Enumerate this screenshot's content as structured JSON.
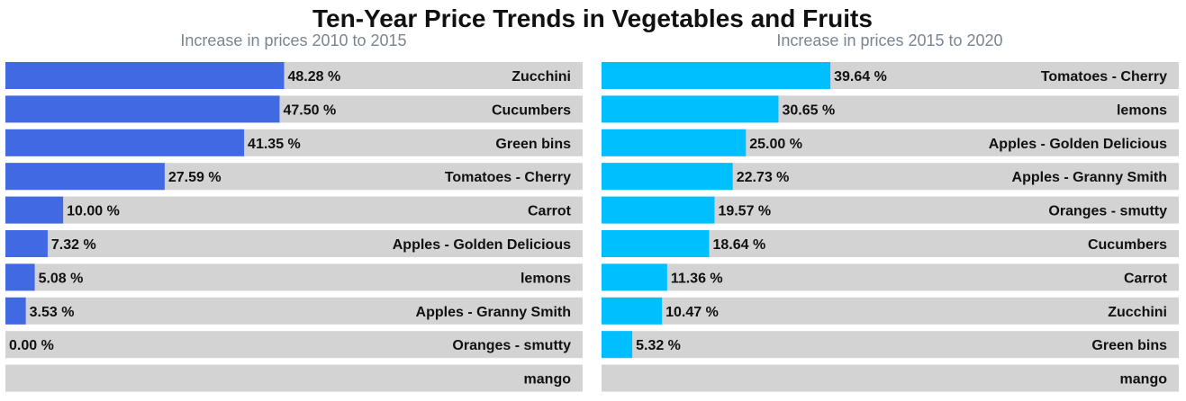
{
  "title": "Ten-Year Price Trends in Vegetables and Fruits",
  "colors": {
    "track": "#d3d3d3",
    "text": "#111111",
    "subtitle": "#7a8591",
    "left_bar": "#4169e1",
    "right_bar": "#00bfff"
  },
  "chart_data": [
    {
      "type": "bar",
      "orientation": "horizontal",
      "subtitle": "Increase in prices 2010 to 2015",
      "xlim": [
        0,
        100
      ],
      "value_suffix": " %",
      "categories": [
        "Zucchini",
        "Cucumbers",
        "Green bins",
        "Tomatoes - Cherry",
        "Carrot",
        "Apples - Golden Delicious",
        "lemons",
        "Apples - Granny Smith",
        "Oranges - smutty",
        "mango"
      ],
      "values": [
        48.28,
        47.5,
        41.35,
        27.59,
        10.0,
        7.32,
        5.08,
        3.53,
        0.0,
        null
      ],
      "value_labels": [
        "48.28 %",
        "47.50 %",
        "41.35 %",
        "27.59 %",
        "10.00 %",
        "7.32 %",
        "5.08 %",
        "3.53 %",
        "0.00 %",
        ""
      ]
    },
    {
      "type": "bar",
      "orientation": "horizontal",
      "subtitle": "Increase in prices 2015 to 2020",
      "xlim": [
        0,
        100
      ],
      "value_suffix": " %",
      "categories": [
        "Tomatoes - Cherry",
        "lemons",
        "Apples - Golden Delicious",
        "Apples - Granny Smith",
        "Oranges - smutty",
        "Cucumbers",
        "Carrot",
        "Zucchini",
        "Green bins",
        "mango"
      ],
      "values": [
        39.64,
        30.65,
        25.0,
        22.73,
        19.57,
        18.64,
        11.36,
        10.47,
        5.32,
        null
      ],
      "value_labels": [
        "39.64 %",
        "30.65 %",
        "25.00 %",
        "22.73 %",
        "19.57 %",
        "18.64 %",
        "11.36 %",
        "10.47 %",
        "5.32 %",
        ""
      ]
    }
  ]
}
